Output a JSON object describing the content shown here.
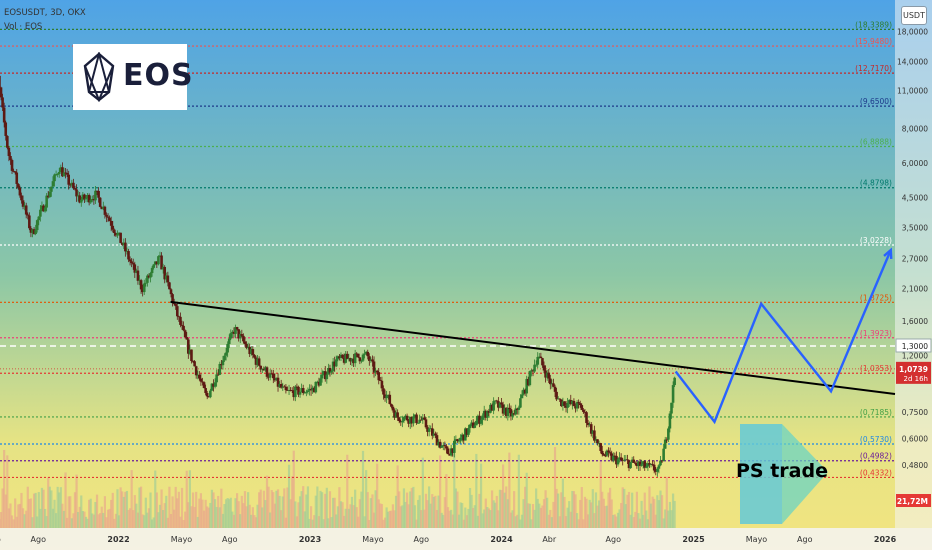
{
  "header": {
    "symbol_line": "EOSUSDT, 3D, OKX",
    "volume_line": "Vol · EOS"
  },
  "currency_badge": "USDT",
  "logos": {
    "eos": "EOS",
    "ps": "PS trade"
  },
  "chart_data": {
    "type": "candlestick",
    "instrument": "EOSUSDT",
    "timeframe": "3D",
    "exchange": "OKX",
    "y_scale": "log",
    "ylim": [
      0.4,
      19.5
    ],
    "xlim": [
      "2021-05-01",
      "2026-01-20"
    ],
    "grid": false,
    "price_axis_ticks": [
      "18,0000",
      "14,0000",
      "11,0000",
      "8,0000",
      "6,0000",
      "4,5000",
      "3,5000",
      "2,7000",
      "2,1000",
      "1,6000",
      "1,2000",
      "0,7500",
      "0,6000",
      "0,4800"
    ],
    "time_axis_ticks": [
      {
        "label": "Mayo",
        "date": "2021-05-01"
      },
      {
        "label": "Ago",
        "date": "2021-08-01"
      },
      {
        "label": "2022",
        "date": "2022-01-01"
      },
      {
        "label": "Mayo",
        "date": "2022-05-01"
      },
      {
        "label": "Ago",
        "date": "2022-08-01"
      },
      {
        "label": "2023",
        "date": "2023-01-01"
      },
      {
        "label": "Mayo",
        "date": "2023-05-01"
      },
      {
        "label": "Ago",
        "date": "2023-08-01"
      },
      {
        "label": "2024",
        "date": "2024-01-01"
      },
      {
        "label": "Abr",
        "date": "2024-04-01"
      },
      {
        "label": "Ago",
        "date": "2024-08-01"
      },
      {
        "label": "2025",
        "date": "2025-01-01"
      },
      {
        "label": "Mayo",
        "date": "2025-05-01"
      },
      {
        "label": "Ago",
        "date": "2025-08-01"
      },
      {
        "label": "2026",
        "date": "2026-01-01"
      }
    ],
    "horizontal_levels": [
      {
        "label": "(18,3389)",
        "price": 18.3389,
        "color": "#2e7d32",
        "style": "dotted"
      },
      {
        "label": "(15,9480)",
        "price": 15.948,
        "color": "#ef5350",
        "style": "dotted"
      },
      {
        "label": "(12,7170)",
        "price": 12.717,
        "color": "#c62828",
        "style": "dotted"
      },
      {
        "label": "(9,6500)",
        "price": 9.65,
        "color": "#1e3a8a",
        "style": "dotted"
      },
      {
        "label": "(6,8888)",
        "price": 6.8888,
        "color": "#4caf50",
        "style": "dotted"
      },
      {
        "label": "(4,8798)",
        "price": 4.8798,
        "color": "#00796b",
        "style": "dotted"
      },
      {
        "label": "(3,0228)",
        "price": 3.0228,
        "color": "#ffffff",
        "style": "dotted"
      },
      {
        "label": "(1,8725)",
        "price": 1.8725,
        "color": "#e65100",
        "style": "dotted"
      },
      {
        "label": "(1,3923)",
        "price": 1.3923,
        "color": "#ec407a",
        "style": "dotted"
      },
      {
        "label": "(1,0353)",
        "price": 1.0353,
        "color": "#e53935",
        "style": "dotted"
      },
      {
        "label": "(0,7185)",
        "price": 0.7185,
        "color": "#43a047",
        "style": "dotted"
      },
      {
        "label": "(0,5730)",
        "price": 0.573,
        "color": "#1e88e5",
        "style": "dotted"
      },
      {
        "label": "(0,4982)",
        "price": 0.4982,
        "color": "#6a1b9a",
        "style": "dotted"
      },
      {
        "label": "(0,4332)",
        "price": 0.4332,
        "color": "#e53935",
        "style": "dotted"
      }
    ],
    "reference_line": {
      "label": "1,3000",
      "price": 1.3,
      "color": "#ffffff",
      "style": "dashed"
    },
    "last_price": {
      "label": "1,0739",
      "countdown": "2d 16h",
      "price": 1.0739,
      "color": "#d32f2f"
    },
    "volume_label": {
      "label": "21,72M",
      "color": "#e53935"
    },
    "trendline": {
      "color": "#000000",
      "points": [
        {
          "date": "2022-04-10",
          "price": 1.88
        },
        {
          "date": "2026-01-20",
          "price": 0.87
        }
      ]
    },
    "projection_path": {
      "color": "#2962ff",
      "points": [
        {
          "date": "2024-11-28",
          "price": 1.05
        },
        {
          "date": "2025-02-10",
          "price": 0.69
        },
        {
          "date": "2025-05-10",
          "price": 1.85
        },
        {
          "date": "2025-09-20",
          "price": 0.89
        },
        {
          "date": "2026-01-12",
          "price": 2.9
        }
      ]
    },
    "price_path": [
      {
        "date": "2021-05-01",
        "price": 7.5
      },
      {
        "date": "2021-05-14",
        "price": 13.0
      },
      {
        "date": "2021-06-05",
        "price": 6.5
      },
      {
        "date": "2021-07-20",
        "price": 3.3
      },
      {
        "date": "2021-09-10",
        "price": 5.8
      },
      {
        "date": "2021-10-20",
        "price": 4.4
      },
      {
        "date": "2021-11-20",
        "price": 4.6
      },
      {
        "date": "2022-01-10",
        "price": 3.0
      },
      {
        "date": "2022-02-15",
        "price": 2.1
      },
      {
        "date": "2022-03-20",
        "price": 2.7
      },
      {
        "date": "2022-04-20",
        "price": 1.75
      },
      {
        "date": "2022-05-15",
        "price": 1.25
      },
      {
        "date": "2022-06-18",
        "price": 0.84
      },
      {
        "date": "2022-08-10",
        "price": 1.5
      },
      {
        "date": "2022-09-20",
        "price": 1.15
      },
      {
        "date": "2022-11-15",
        "price": 0.88
      },
      {
        "date": "2023-01-05",
        "price": 0.9
      },
      {
        "date": "2023-02-20",
        "price": 1.15
      },
      {
        "date": "2023-04-20",
        "price": 1.2
      },
      {
        "date": "2023-06-15",
        "price": 0.72
      },
      {
        "date": "2023-08-01",
        "price": 0.7
      },
      {
        "date": "2023-09-20",
        "price": 0.53
      },
      {
        "date": "2023-11-10",
        "price": 0.68
      },
      {
        "date": "2023-12-20",
        "price": 0.8
      },
      {
        "date": "2024-01-25",
        "price": 0.72
      },
      {
        "date": "2024-03-10",
        "price": 1.2
      },
      {
        "date": "2024-04-20",
        "price": 0.82
      },
      {
        "date": "2024-06-01",
        "price": 0.78
      },
      {
        "date": "2024-07-10",
        "price": 0.53
      },
      {
        "date": "2024-08-10",
        "price": 0.5
      },
      {
        "date": "2024-09-20",
        "price": 0.48
      },
      {
        "date": "2024-10-28",
        "price": 0.46
      },
      {
        "date": "2024-11-10",
        "price": 0.6
      },
      {
        "date": "2024-11-28",
        "price": 1.0739
      }
    ]
  }
}
